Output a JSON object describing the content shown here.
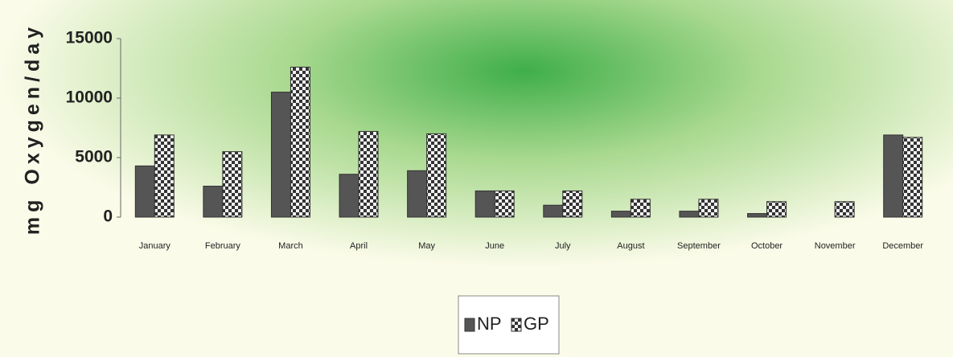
{
  "chart_data": {
    "type": "bar",
    "ylabel": "mg Oxygen/day",
    "categories": [
      "January",
      "February",
      "March",
      "April",
      "May",
      "June",
      "July",
      "August",
      "September",
      "October",
      "November",
      "December"
    ],
    "series": [
      {
        "name": "NP",
        "color": "#555555",
        "values": [
          4300,
          2600,
          10500,
          3600,
          3900,
          2200,
          1000,
          500,
          500,
          300,
          0,
          6900
        ]
      },
      {
        "name": "GP",
        "color": "#3a3a3a",
        "values": [
          6900,
          5500,
          12600,
          7200,
          7000,
          2200,
          2200,
          1500,
          1500,
          1300,
          1300,
          6700
        ]
      }
    ],
    "ylim": [
      0,
      15000
    ],
    "yticks": [
      0,
      5000,
      10000,
      15000
    ],
    "grid": false,
    "legend": "bottom"
  }
}
